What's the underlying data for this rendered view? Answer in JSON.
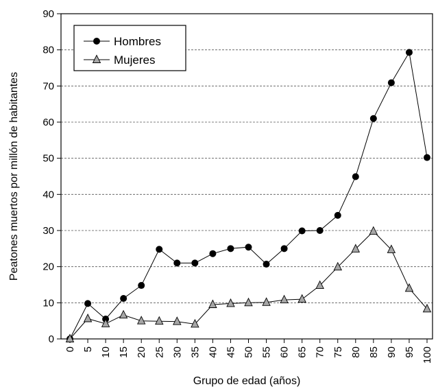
{
  "chart_data": {
    "type": "line",
    "title": "",
    "xlabel": "Grupo de edad (años)",
    "ylabel": "Peatones muertos por millón de habitantes",
    "ylim": [
      0,
      90
    ],
    "yticks": [
      0,
      10,
      20,
      30,
      40,
      50,
      60,
      70,
      80,
      90
    ],
    "xlim": [
      0,
      100
    ],
    "xticks": [
      0,
      5,
      10,
      15,
      20,
      25,
      30,
      35,
      40,
      45,
      50,
      55,
      60,
      65,
      70,
      75,
      80,
      85,
      90,
      95,
      100
    ],
    "grid": "horizontal dashed",
    "legend_position": "top-left",
    "series": [
      {
        "name": "Hombres",
        "marker": "circle",
        "marker_color": "#000000",
        "x": [
          0,
          5,
          10,
          15,
          20,
          25,
          30,
          35,
          40,
          45,
          50,
          55,
          60,
          65,
          70,
          75,
          80,
          85,
          90,
          95,
          100
        ],
        "values": [
          0,
          9.8,
          5.5,
          11.2,
          14.8,
          24.8,
          21.0,
          21.0,
          23.6,
          25.0,
          25.4,
          20.7,
          25.0,
          29.9,
          30.0,
          34.2,
          44.9,
          61.0,
          70.9,
          79.3,
          50.2
        ]
      },
      {
        "name": "Mujeres",
        "marker": "triangle",
        "marker_color": "#a6a6a6",
        "x": [
          0,
          5,
          10,
          15,
          20,
          25,
          30,
          35,
          40,
          45,
          50,
          55,
          60,
          65,
          70,
          75,
          80,
          85,
          90,
          95,
          100
        ],
        "values": [
          0,
          5.6,
          4.2,
          6.6,
          5.0,
          4.9,
          4.8,
          4.1,
          9.5,
          9.8,
          10.0,
          10.1,
          10.8,
          11.0,
          14.8,
          19.9,
          24.9,
          29.8,
          24.7,
          14.0,
          8.3
        ]
      }
    ]
  }
}
